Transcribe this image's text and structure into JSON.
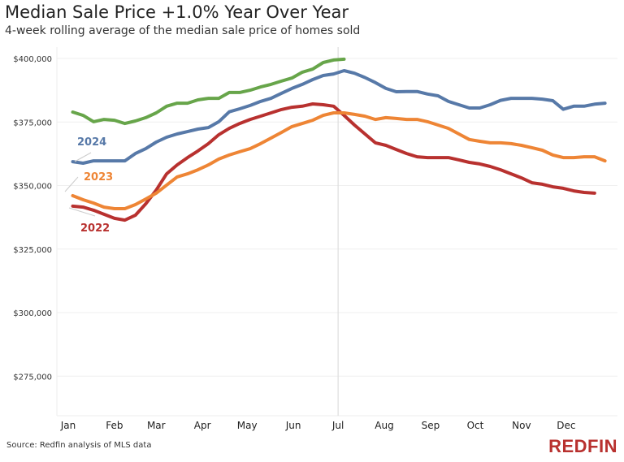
{
  "chart_data": {
    "type": "line",
    "title": "Median Sale Price +1.0% Year Over Year",
    "subtitle": "4-week rolling average of the median sale price of homes sold",
    "source": "Source: Redfin analysis of MLS data",
    "brand": "REDFIN",
    "x_unit": "week of year",
    "x_tick_labels": [
      "Jan",
      "Feb",
      "Mar",
      "Apr",
      "May",
      "Jun",
      "Jul",
      "Aug",
      "Sep",
      "Oct",
      "Nov",
      "Dec"
    ],
    "y_tick_labels": [
      "$400,000",
      "$375,000",
      "$350,000",
      "$325,000",
      "$300,000",
      "$275,000"
    ],
    "y_ticks": [
      400000,
      375000,
      350000,
      325000,
      300000,
      275000
    ],
    "ylim": [
      260000,
      404000
    ],
    "grid": "horizontal",
    "reference_line": "Jul",
    "series": [
      {
        "name": "2024",
        "color": "#5779a8",
        "values": [
          359400,
          358800,
          359700,
          359700,
          359700,
          359700,
          362600,
          364500,
          367100,
          369000,
          370300,
          371200,
          372200,
          372800,
          375100,
          379000,
          380200,
          381500,
          383100,
          384300,
          386300,
          388200,
          389800,
          391700,
          393300,
          393900,
          395200,
          394200,
          392500,
          390500,
          388200,
          386900,
          387000,
          387000,
          386000,
          385300,
          383100,
          381800,
          380500,
          380500,
          381800,
          383500,
          384300,
          384300,
          384300,
          384000,
          383400,
          380000,
          381200,
          381200,
          382000,
          382400
        ]
      },
      {
        "name": "2023",
        "color": "#ee8535",
        "values": [
          346000,
          344400,
          343100,
          341500,
          340900,
          340900,
          342500,
          344700,
          347000,
          350200,
          353400,
          354600,
          356200,
          358100,
          360400,
          362000,
          363300,
          364500,
          366500,
          368700,
          370900,
          373200,
          374400,
          375700,
          377600,
          378600,
          378600,
          378000,
          377300,
          376000,
          376700,
          376400,
          376000,
          376000,
          375100,
          373800,
          372500,
          370300,
          368100,
          367400,
          366800,
          366800,
          366500,
          365800,
          364900,
          363900,
          362000,
          361000,
          361000,
          361300,
          361300,
          359700
        ]
      },
      {
        "name": "2022",
        "color": "#b8312f",
        "values": [
          341900,
          341500,
          340300,
          338700,
          337100,
          336400,
          338300,
          342800,
          348200,
          354600,
          358100,
          361000,
          363600,
          366500,
          370000,
          372500,
          374400,
          376000,
          377300,
          378600,
          379900,
          380800,
          381200,
          382100,
          381800,
          381200,
          377600,
          373800,
          370300,
          366800,
          365800,
          364200,
          362600,
          361300,
          361000,
          361000,
          361000,
          360100,
          359100,
          358500,
          357500,
          356200,
          354600,
          353000,
          351100,
          350500,
          349500,
          348900,
          347900,
          347300,
          347000
        ]
      },
      {
        "color": "#67a54a",
        "values": [
          378900,
          377600,
          375100,
          376000,
          375700,
          374400,
          375400,
          376700,
          378600,
          381200,
          382400,
          382400,
          383700,
          384300,
          384300,
          386600,
          386600,
          387500,
          388800,
          389800,
          391100,
          392300,
          394600,
          395800,
          398400,
          399400,
          399700
        ]
      }
    ]
  }
}
